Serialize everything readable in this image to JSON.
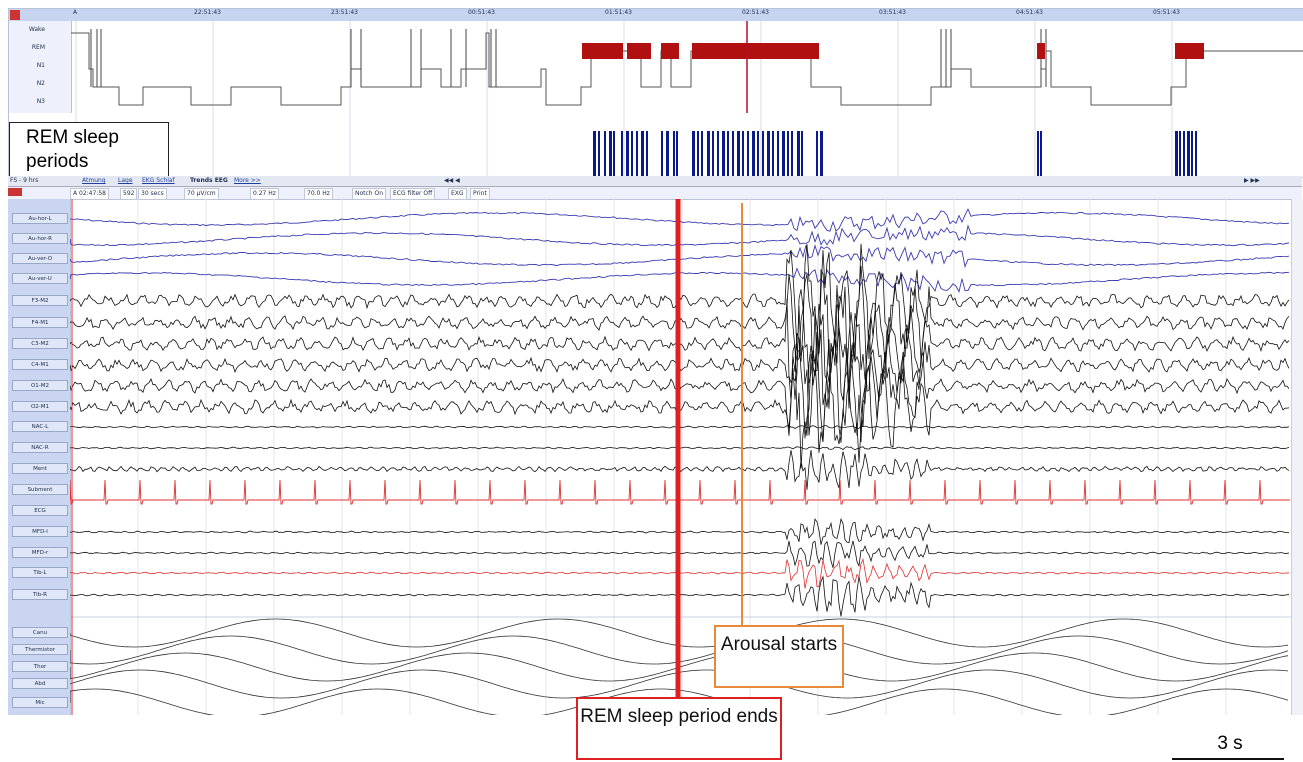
{
  "hypnogram": {
    "tab_letter": "A",
    "times": [
      "22:51:43",
      "23:51:43",
      "00:51:43",
      "01:51:43",
      "02:51:43",
      "03:51:43",
      "04:51:43",
      "05:51:43"
    ],
    "stages": [
      "Wake",
      "REM",
      "N1",
      "N2",
      "N3"
    ],
    "rem_color": "#b01010",
    "rem_periods_color": "#0a1a8a",
    "rem_box_label": "REM sleep periods"
  },
  "midbar": {
    "fs_label": "FS - 9 hrs",
    "tabs": [
      "Atmung",
      "Lage",
      "EKG Schlaf",
      "Trends EEG",
      "More >>"
    ]
  },
  "controls": {
    "position": "A 02:47:58",
    "epoch": "592",
    "duration": "30 secs",
    "sensitivity": "70 µV/cm",
    "low_filter": "0.27 Hz",
    "high_filter": "70.0 Hz",
    "notch": "Notch On",
    "ecg_filter": "ECG filter Off",
    "exg": "EXG",
    "print": "Print"
  },
  "channels": [
    "Au-hor-L",
    "Au-hor-R",
    "Au-ver-O",
    "Au-ver-U",
    "F3-M2",
    "F4-M1",
    "C3-M2",
    "C4-M1",
    "O1-M2",
    "O2-M1",
    "NAC-L",
    "NAC-R",
    "Ment",
    "Subment",
    "ECG",
    "MFD-l",
    "MFD-r",
    "Tib-L",
    "Tib-R",
    "Canu",
    "Thermistor",
    "Thor",
    "Abd",
    "Mic"
  ],
  "annotations": {
    "arousal": "Arousal starts",
    "rem_end": "REM sleep period ends",
    "scale": "3 s"
  },
  "colors": {
    "eog": "#3a3ab0",
    "eeg": "#111111",
    "ecg": "#e03030",
    "marker_red": "#e02020",
    "marker_orange": "#e88a3a"
  }
}
